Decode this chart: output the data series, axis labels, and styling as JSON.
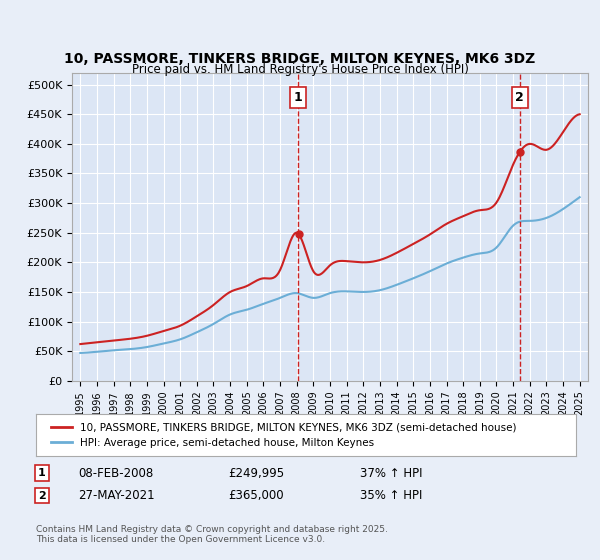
{
  "title": "10, PASSMORE, TINKERS BRIDGE, MILTON KEYNES, MK6 3DZ",
  "subtitle": "Price paid vs. HM Land Registry's House Price Index (HPI)",
  "background_color": "#e8eef8",
  "plot_bg_color": "#dce6f5",
  "red_line_label": "10, PASSMORE, TINKERS BRIDGE, MILTON KEYNES, MK6 3DZ (semi-detached house)",
  "blue_line_label": "HPI: Average price, semi-detached house, Milton Keynes",
  "marker1_date": "08-FEB-2008",
  "marker1_price": "£249,995",
  "marker1_hpi": "37% ↑ HPI",
  "marker1_year": 2008.1,
  "marker2_date": "27-MAY-2021",
  "marker2_price": "£365,000",
  "marker2_hpi": "35% ↑ HPI",
  "marker2_year": 2021.4,
  "footer": "Contains HM Land Registry data © Crown copyright and database right 2025.\nThis data is licensed under the Open Government Licence v3.0.",
  "ylim": [
    0,
    520000
  ],
  "yticks": [
    0,
    50000,
    100000,
    150000,
    200000,
    250000,
    300000,
    350000,
    400000,
    450000,
    500000
  ],
  "years": [
    1995,
    1996,
    1997,
    1998,
    1999,
    2000,
    2001,
    2002,
    2003,
    2004,
    2005,
    2006,
    2007,
    2008,
    2009,
    2010,
    2011,
    2012,
    2013,
    2014,
    2015,
    2016,
    2017,
    2018,
    2019,
    2020,
    2021,
    2022,
    2023,
    2024,
    2025
  ],
  "hpi_values": [
    47000,
    49000,
    51500,
    53500,
    57000,
    63000,
    70000,
    82000,
    96000,
    112000,
    120000,
    130000,
    140000,
    148000,
    140000,
    148000,
    151000,
    150000,
    153000,
    162000,
    173000,
    185000,
    198000,
    208000,
    215000,
    225000,
    262000,
    270000,
    275000,
    290000,
    310000
  ],
  "red_values": [
    62000,
    65000,
    68000,
    71000,
    76000,
    84000,
    93000,
    109000,
    128000,
    150000,
    160000,
    173000,
    187000,
    249995,
    185000,
    195000,
    202000,
    200000,
    204000,
    216000,
    231000,
    247000,
    265000,
    278000,
    288000,
    301000,
    365000,
    400000,
    390000,
    420000,
    450000
  ]
}
